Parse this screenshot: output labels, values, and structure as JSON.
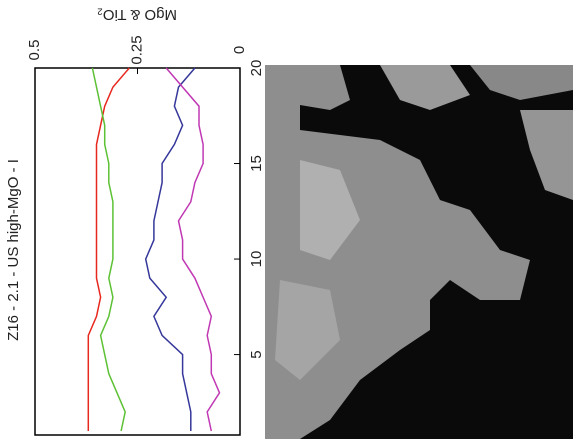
{
  "chart_data": {
    "type": "line",
    "title": "Z16 - 2.1 - US high-MgO - I",
    "y_label": "MgO & TiO₂",
    "x": [
      1,
      2,
      3,
      4,
      5,
      6,
      7,
      8,
      9,
      10,
      11,
      12,
      13,
      14,
      15,
      16,
      17,
      18,
      19,
      20
    ],
    "xlim": [
      1,
      20
    ],
    "xticks": [
      5,
      10,
      15,
      20
    ],
    "ylim": [
      0,
      0.5
    ],
    "yticks": [
      0,
      0.25,
      0.5
    ],
    "series": [
      {
        "color": "#e8281e",
        "values": [
          0.37,
          0.37,
          0.37,
          0.37,
          0.37,
          0.37,
          0.35,
          0.34,
          0.35,
          0.35,
          0.35,
          0.35,
          0.35,
          0.35,
          0.35,
          0.35,
          0.34,
          0.33,
          0.31,
          0.27
        ]
      },
      {
        "color": "#5cc134",
        "values": [
          0.29,
          0.28,
          0.3,
          0.32,
          0.33,
          0.34,
          0.32,
          0.31,
          0.32,
          0.31,
          0.31,
          0.31,
          0.31,
          0.32,
          0.32,
          0.33,
          0.33,
          0.34,
          0.35,
          0.36
        ]
      },
      {
        "color": "#35379a",
        "values": [
          0.12,
          0.12,
          0.13,
          0.14,
          0.14,
          0.19,
          0.21,
          0.18,
          0.22,
          0.23,
          0.21,
          0.21,
          0.2,
          0.19,
          0.19,
          0.16,
          0.14,
          0.16,
          0.15,
          0.11
        ]
      },
      {
        "color": "#c038b4",
        "values": [
          0.07,
          0.08,
          0.05,
          0.07,
          0.07,
          0.08,
          0.07,
          0.09,
          0.11,
          0.14,
          0.14,
          0.15,
          0.12,
          0.11,
          0.09,
          0.09,
          0.1,
          0.1,
          0.14,
          0.18
        ]
      }
    ]
  }
}
